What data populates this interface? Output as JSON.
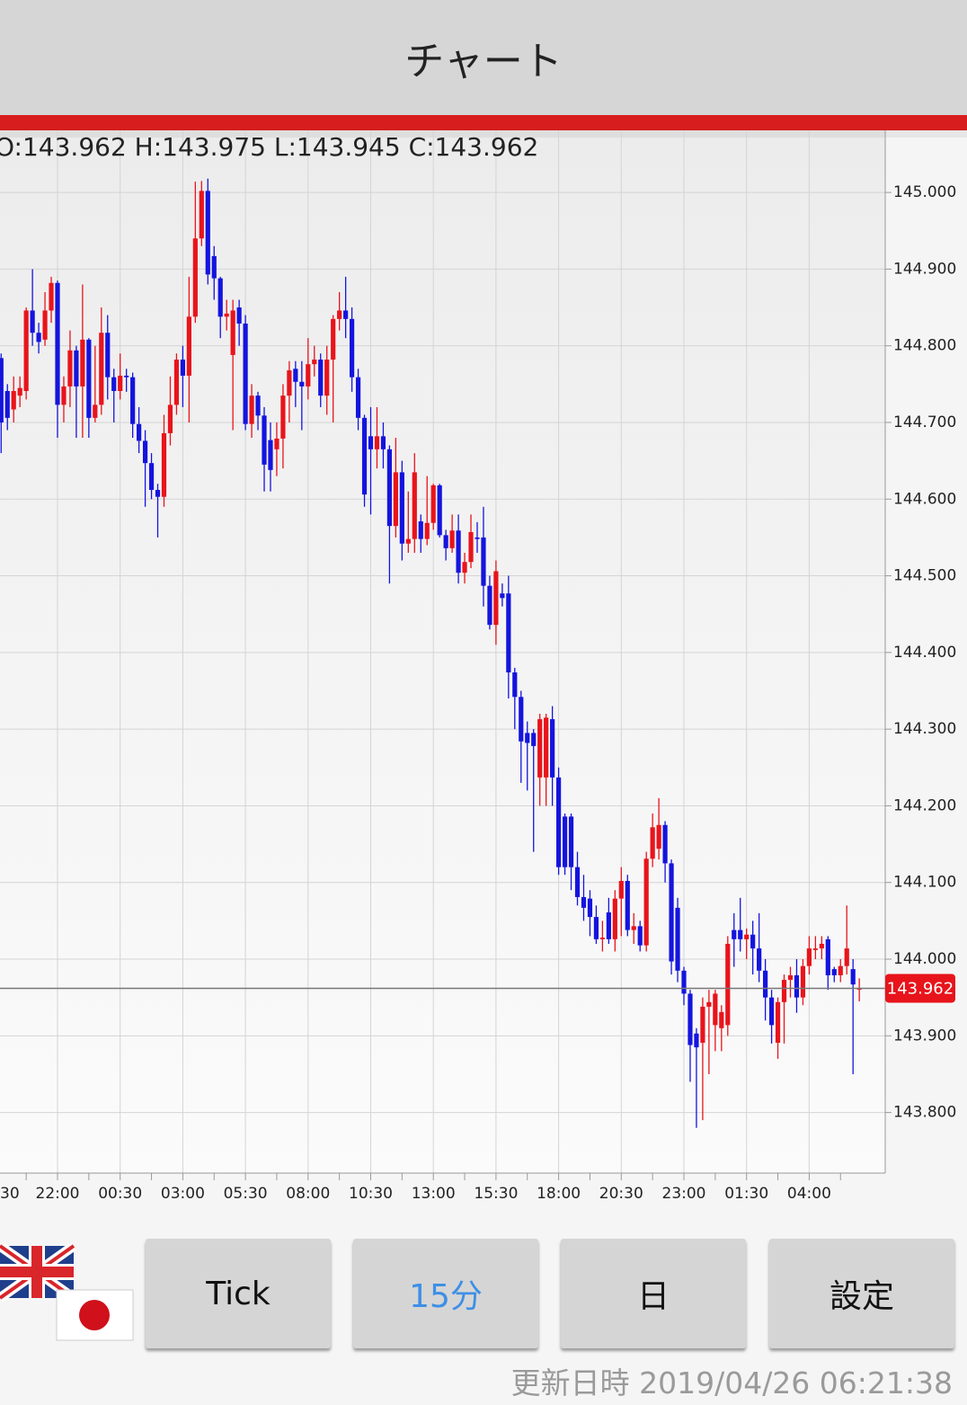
{
  "header": {
    "title": "チャート"
  },
  "chart_data": {
    "type": "candlestick",
    "info_label": "O:143.962 H:143.975 L:143.945 C:143.962",
    "categories": [
      "30",
      null,
      null,
      null,
      null,
      null,
      null,
      null,
      null,
      null,
      "22:00",
      null,
      null,
      null,
      null,
      null,
      null,
      null,
      null,
      null,
      "00:30",
      null,
      null,
      null,
      null,
      null,
      null,
      null,
      null,
      null,
      "03:00",
      null,
      null,
      null,
      null,
      null,
      null,
      null,
      null,
      null,
      "05:30",
      null,
      null,
      null,
      null,
      null,
      null,
      null,
      null,
      null,
      "08:00",
      null,
      null,
      null,
      null,
      null,
      null,
      null,
      null,
      null,
      "10:30",
      null,
      null,
      null,
      null,
      null,
      null,
      null,
      null,
      null,
      "13:00",
      null,
      null,
      null,
      null,
      null,
      null,
      null,
      null,
      null,
      "15:30",
      null,
      null,
      null,
      null,
      null,
      null,
      null,
      null,
      null,
      "18:00",
      null,
      null,
      null,
      null,
      null,
      null,
      null,
      null,
      null,
      "20:30",
      null,
      null,
      null,
      null,
      null,
      null,
      null,
      null,
      null,
      "23:00",
      null,
      null,
      null,
      null,
      null,
      null,
      null,
      null,
      null,
      "01:30",
      null,
      null,
      null,
      null,
      null,
      null,
      null,
      null,
      null,
      "04:00",
      null,
      null,
      null,
      null,
      null,
      null,
      null,
      null
    ],
    "open": [
      null,
      144.784,
      144.741,
      144.717,
      144.735,
      144.741,
      144.846,
      144.817,
      144.808,
      144.846,
      144.882,
      144.723,
      144.747,
      144.794,
      144.747,
      144.808,
      144.706,
      144.723,
      144.817,
      144.759,
      144.741,
      144.761,
      144.759,
      144.698,
      144.676,
      144.647,
      144.612,
      144.603,
      144.686,
      144.723,
      144.782,
      144.761,
      144.838,
      144.94,
      145.002,
      144.917,
      144.888,
      144.838,
      144.788,
      144.85,
      144.829,
      144.698,
      144.735,
      144.709,
      144.677,
      144.665,
      144.679,
      144.735,
      144.77,
      144.753,
      144.747,
      144.776,
      144.782,
      144.735,
      144.782,
      144.835,
      144.846,
      144.835,
      144.759,
      144.706,
      144.682,
      144.665,
      144.682,
      144.665,
      144.565,
      144.635,
      144.542,
      144.548,
      144.571,
      144.548,
      144.569,
      144.618,
      144.553,
      144.536,
      144.559,
      144.504,
      144.518,
      144.55,
      144.55,
      144.487,
      144.436,
      144.477,
      144.477,
      144.374,
      144.342,
      144.295,
      144.295,
      144.237,
      144.237,
      144.313,
      144.237,
      144.186,
      144.186,
      144.12,
      144.081,
      144.079,
      144.055,
      144.026,
      144.061,
      144.026,
      144.079,
      144.102,
      144.038,
      144.043,
      144.018,
      144.131,
      144.144,
      144.175,
      144.125,
      144.067,
      143.985,
      143.955,
      143.903,
      143.891,
      143.938,
      143.914,
      143.91,
      143.914,
      144.038,
      144.038,
      144.026,
      144.032,
      144.014,
      143.985,
      143.95,
      143.891,
      143.944,
      143.973,
      143.979,
      143.95,
      143.991,
      144.012,
      144.014,
      144.026,
      143.987,
      143.979,
      143.991,
      143.987,
      143.962
    ],
    "high": [
      null,
      144.79,
      144.75,
      144.76,
      144.76,
      144.85,
      144.9,
      144.83,
      144.87,
      144.89,
      144.885,
      144.76,
      144.82,
      144.8,
      144.88,
      144.81,
      144.8,
      144.85,
      144.84,
      144.77,
      144.79,
      144.77,
      144.765,
      144.72,
      144.69,
      144.66,
      144.62,
      144.71,
      144.76,
      144.79,
      144.8,
      144.89,
      145.014,
      145.015,
      145.018,
      144.93,
      144.89,
      144.86,
      144.86,
      144.86,
      144.84,
      144.75,
      144.74,
      144.72,
      144.7,
      144.7,
      144.75,
      144.78,
      144.78,
      144.78,
      144.81,
      144.8,
      144.79,
      144.8,
      144.84,
      144.87,
      144.89,
      144.85,
      144.77,
      144.71,
      144.72,
      144.72,
      144.7,
      144.67,
      144.68,
      144.65,
      144.61,
      144.66,
      144.58,
      144.63,
      144.62,
      144.62,
      144.56,
      144.58,
      144.58,
      144.53,
      144.58,
      144.57,
      144.59,
      144.5,
      144.52,
      144.49,
      144.5,
      144.38,
      144.35,
      144.31,
      144.3,
      144.32,
      144.32,
      144.33,
      144.25,
      144.19,
      144.19,
      144.14,
      144.11,
      144.09,
      144.07,
      144.05,
      144.08,
      144.09,
      144.12,
      144.11,
      144.06,
      144.05,
      144.14,
      144.19,
      144.21,
      144.18,
      144.13,
      144.08,
      143.99,
      143.96,
      143.91,
      143.95,
      143.96,
      143.96,
      143.94,
      144.03,
      144.06,
      144.08,
      144.04,
      144.05,
      144.06,
      144.0,
      143.96,
      143.95,
      143.98,
      143.99,
      144.0,
      144.0,
      144.03,
      144.03,
      144.03,
      144.03,
      143.99,
      144.0,
      144.07,
      144.0,
      143.975
    ],
    "low": [
      null,
      144.66,
      144.69,
      144.7,
      144.72,
      144.73,
      144.8,
      144.79,
      144.8,
      144.83,
      144.68,
      144.7,
      144.72,
      144.68,
      144.68,
      144.68,
      144.7,
      144.71,
      144.73,
      144.7,
      144.73,
      144.74,
      144.68,
      144.66,
      144.59,
      144.6,
      144.55,
      144.59,
      144.67,
      144.71,
      144.72,
      144.7,
      144.83,
      144.93,
      144.88,
      144.86,
      144.81,
      144.82,
      144.69,
      144.8,
      144.69,
      144.68,
      144.69,
      144.61,
      144.61,
      144.63,
      144.64,
      144.7,
      144.72,
      144.69,
      144.73,
      144.76,
      144.72,
      144.71,
      144.7,
      144.82,
      144.81,
      144.74,
      144.69,
      144.59,
      144.58,
      144.64,
      144.64,
      144.49,
      144.55,
      144.52,
      144.53,
      144.53,
      144.53,
      144.54,
      144.56,
      144.55,
      144.52,
      144.53,
      144.49,
      144.49,
      144.51,
      144.53,
      144.46,
      144.43,
      144.41,
      144.46,
      144.34,
      144.3,
      144.23,
      144.22,
      144.14,
      144.2,
      144.2,
      144.2,
      144.11,
      144.11,
      144.09,
      144.07,
      144.05,
      144.03,
      144.02,
      144.01,
      144.02,
      144.01,
      144.03,
      144.03,
      144.02,
      144.01,
      144.01,
      144.12,
      144.13,
      144.1,
      143.98,
      143.97,
      143.94,
      143.84,
      143.78,
      143.79,
      143.85,
      143.88,
      143.88,
      143.9,
      143.99,
      144.01,
      144.0,
      143.98,
      143.97,
      143.92,
      143.89,
      143.87,
      143.89,
      143.95,
      143.93,
      143.94,
      143.98,
      144.0,
      144.0,
      143.96,
      143.97,
      143.97,
      143.98,
      143.85,
      143.945
    ],
    "close": [
      null,
      144.7,
      144.706,
      144.741,
      144.745,
      144.846,
      144.817,
      144.805,
      144.846,
      144.882,
      144.723,
      144.747,
      144.794,
      144.747,
      144.808,
      144.706,
      144.723,
      144.817,
      144.759,
      144.741,
      144.761,
      144.759,
      144.698,
      144.676,
      144.647,
      144.612,
      144.603,
      144.686,
      144.723,
      144.782,
      144.761,
      144.838,
      144.94,
      145.002,
      144.893,
      144.888,
      144.838,
      144.842,
      144.846,
      144.829,
      144.698,
      144.735,
      144.709,
      144.645,
      144.638,
      144.679,
      144.735,
      144.768,
      144.753,
      144.747,
      144.776,
      144.782,
      144.735,
      144.782,
      144.835,
      144.846,
      144.835,
      144.759,
      144.706,
      144.606,
      144.665,
      144.682,
      144.665,
      144.565,
      144.635,
      144.542,
      144.548,
      144.635,
      144.548,
      144.569,
      144.618,
      144.553,
      144.536,
      144.559,
      144.504,
      144.518,
      144.557,
      144.548,
      144.487,
      144.436,
      144.506,
      144.471,
      144.374,
      144.342,
      144.284,
      144.282,
      144.278,
      144.313,
      144.315,
      144.237,
      144.12,
      144.12,
      144.12,
      144.081,
      144.067,
      144.055,
      144.026,
      144.028,
      144.026,
      144.079,
      144.102,
      144.038,
      144.043,
      144.018,
      144.131,
      144.172,
      144.175,
      144.125,
      143.997,
      143.985,
      143.955,
      143.888,
      143.885,
      143.938,
      143.944,
      143.955,
      143.931,
      144.02,
      144.026,
      144.026,
      144.032,
      144.014,
      143.985,
      143.95,
      143.914,
      143.944,
      143.973,
      143.979,
      143.95,
      143.991,
      144.014,
      144.014,
      144.02,
      143.979,
      143.979,
      143.991,
      144.014,
      143.967,
      143.962
    ],
    "up_color": "#e8141b",
    "down_color": "#1414de",
    "ylim": [
      143.721,
      145.081
    ],
    "yticks": [
      {
        "value": 143.8,
        "label": "143.800"
      },
      {
        "value": 143.9,
        "label": "143.900"
      },
      {
        "value": 144.0,
        "label": "144.000"
      },
      {
        "value": 144.1,
        "label": "144.100"
      },
      {
        "value": 144.2,
        "label": "144.200"
      },
      {
        "value": 144.3,
        "label": "144.300"
      },
      {
        "value": 144.4,
        "label": "144.400"
      },
      {
        "value": 144.5,
        "label": "144.500"
      },
      {
        "value": 144.6,
        "label": "144.600"
      },
      {
        "value": 144.7,
        "label": "144.700"
      },
      {
        "value": 144.8,
        "label": "144.800"
      },
      {
        "value": 144.9,
        "label": "144.900"
      },
      {
        "value": 145.0,
        "label": "145.000"
      }
    ],
    "grid": true,
    "last_price": 143.962,
    "last_price_color": "#e8141b"
  },
  "buttons": [
    "Tick",
    "15分",
    "日",
    "設定"
  ],
  "footer": {
    "updated": "更新日時 2019/04/26 06:21:38"
  }
}
